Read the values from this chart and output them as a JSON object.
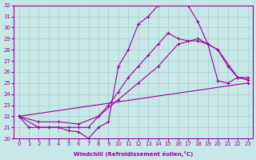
{
  "xlabel": "Windchill (Refroidissement éolien,°C)",
  "bg_color": "#c8e8e8",
  "line_color": "#990099",
  "grid_color": "#aacccc",
  "xlim": [
    -0.5,
    23.5
  ],
  "ylim": [
    20,
    32
  ],
  "xticks": [
    0,
    1,
    2,
    3,
    4,
    5,
    6,
    7,
    8,
    9,
    10,
    11,
    12,
    13,
    14,
    15,
    16,
    17,
    18,
    19,
    20,
    21,
    22,
    23
  ],
  "yticks": [
    20,
    21,
    22,
    23,
    24,
    25,
    26,
    27,
    28,
    29,
    30,
    31,
    32
  ],
  "lines": [
    {
      "x": [
        0,
        1,
        2,
        3,
        4,
        5,
        6,
        7,
        8,
        9,
        10,
        11,
        12,
        13,
        14,
        15,
        16,
        17,
        18,
        19,
        20,
        21,
        22,
        23
      ],
      "y": [
        22,
        21,
        21,
        21,
        21,
        20.7,
        20.6,
        20,
        21,
        21.5,
        26.5,
        28,
        30.3,
        31,
        32,
        32.2,
        32.2,
        32,
        30.5,
        28.5,
        25.2,
        25,
        25.5,
        25.3
      ]
    },
    {
      "x": [
        0,
        2,
        3,
        4,
        5,
        6,
        7,
        8,
        9,
        10,
        11,
        12,
        13,
        14,
        15,
        16,
        17,
        18,
        19,
        20,
        21,
        22,
        23
      ],
      "y": [
        22,
        21,
        21,
        21,
        21,
        21,
        21,
        22,
        23,
        24.2,
        25.5,
        26.5,
        27.5,
        28.5,
        29.5,
        29,
        28.8,
        28.8,
        28.5,
        28,
        26.5,
        25.5,
        25.5
      ]
    },
    {
      "x": [
        0,
        2,
        4,
        6,
        8,
        10,
        12,
        14,
        16,
        18,
        20,
        22,
        23
      ],
      "y": [
        22,
        21.5,
        21.5,
        21.3,
        22,
        23.5,
        25,
        26.5,
        28.5,
        29,
        28,
        25.5,
        25.3
      ]
    },
    {
      "x": [
        0,
        23
      ],
      "y": [
        22,
        25
      ]
    }
  ]
}
